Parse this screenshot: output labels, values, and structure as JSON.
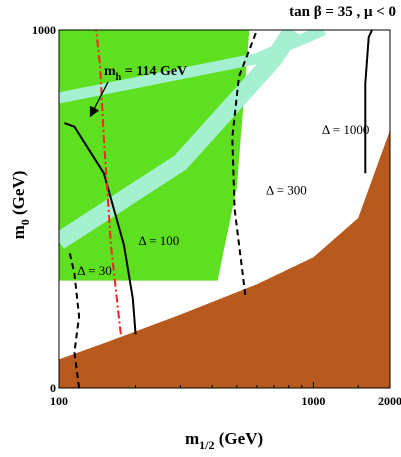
{
  "chart_data": {
    "type": "area",
    "title": "tan β = 35 ,  μ < 0",
    "xlabel": "m",
    "xlabel_sub": "1/2",
    "xlabel_unit": " (GeV)",
    "ylabel": "m",
    "ylabel_sub": "0",
    "ylabel_unit": " (GeV)",
    "xscale": "log",
    "xlim": [
      100,
      2000
    ],
    "ylim": [
      0,
      1000
    ],
    "x_ticks": [
      {
        "value": 100,
        "label": "100"
      },
      {
        "value": 1000,
        "label": "1000"
      },
      {
        "value": 2000,
        "label": "2000"
      }
    ],
    "y_ticks": [
      {
        "value": 0,
        "label": "0"
      },
      {
        "value": 1000,
        "label": "1000"
      }
    ],
    "colors": {
      "excluded": "#b85a1e",
      "relic": "#5ee020",
      "light_band": "#a6f0d2",
      "higgs": "#ff2020",
      "contour": "#000000"
    },
    "regions": [
      {
        "name": "excluded-region",
        "boundary": [
          [
            100,
            80
          ],
          [
            150,
            125
          ],
          [
            300,
            205
          ],
          [
            600,
            290
          ],
          [
            1000,
            365
          ],
          [
            1500,
            475
          ],
          [
            2000,
            720
          ]
        ]
      },
      {
        "name": "relic-region",
        "boundary": [
          [
            100,
            1000
          ],
          [
            560,
            1000
          ],
          [
            500,
            560
          ],
          [
            420,
            300
          ],
          [
            100,
            300
          ]
        ]
      },
      {
        "name": "light-band-lower",
        "boundary": [
          [
            100,
            410
          ],
          [
            300,
            630
          ],
          [
            700,
            920
          ],
          [
            830,
            1000
          ]
        ]
      },
      {
        "name": "light-band-upper",
        "boundary": [
          [
            100,
            810
          ],
          [
            600,
            920
          ],
          [
            1100,
            1000
          ]
        ]
      }
    ],
    "contours": [
      {
        "label": "Δ = 30",
        "style": "dashed",
        "points": [
          [
            120,
            0
          ],
          [
            115,
            100
          ],
          [
            120,
            200
          ],
          [
            115,
            320
          ],
          [
            110,
            380
          ]
        ]
      },
      {
        "label": "Δ = 100",
        "style": "solid",
        "points": [
          [
            200,
            150
          ],
          [
            195,
            250
          ],
          [
            180,
            400
          ],
          [
            150,
            600
          ],
          [
            115,
            730
          ],
          [
            105,
            740
          ]
        ]
      },
      {
        "label": "Δ = 300",
        "style": "dashed",
        "points": [
          [
            540,
            260
          ],
          [
            490,
            500
          ],
          [
            480,
            700
          ],
          [
            510,
            870
          ],
          [
            600,
            1000
          ]
        ]
      },
      {
        "label": "Δ = 1000",
        "style": "solid",
        "points": [
          [
            1600,
            600
          ],
          [
            1600,
            850
          ],
          [
            1650,
            980
          ],
          [
            1700,
            1000
          ]
        ]
      }
    ],
    "higgs_line": {
      "label": "m",
      "label_sub": "h",
      "label_value": " = 114 GeV",
      "style": "dash-dot",
      "points": [
        [
          175,
          150
        ],
        [
          160,
          400
        ],
        [
          150,
          700
        ],
        [
          145,
          900
        ],
        [
          140,
          1000
        ]
      ]
    },
    "contour_labels": [
      {
        "text": "Δ = 30",
        "x": 118,
        "y": 315
      },
      {
        "text": "Δ = 100",
        "x": 205,
        "y": 400
      },
      {
        "text": "Δ = 300",
        "x": 650,
        "y": 540
      },
      {
        "text": "Δ = 1000",
        "x": 1080,
        "y": 710
      }
    ]
  }
}
